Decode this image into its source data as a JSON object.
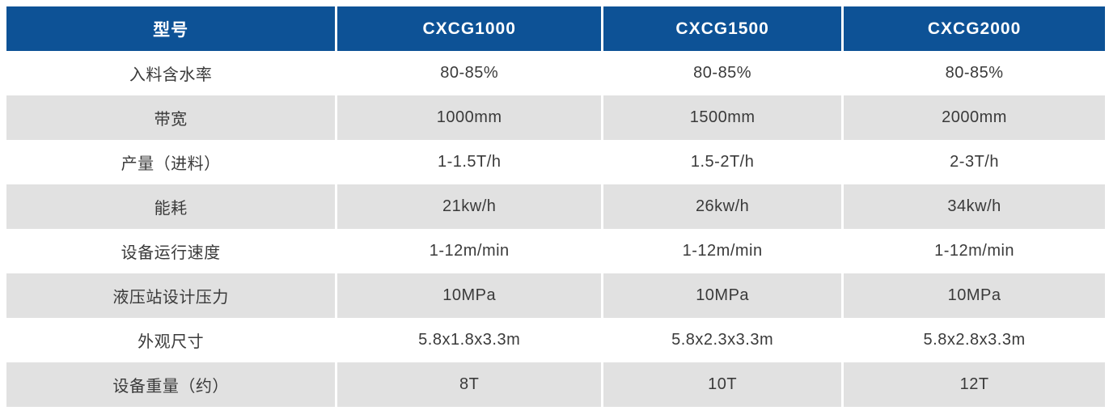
{
  "meta": {
    "description_label": "Equipment specification table",
    "accent_color": "#0d5296",
    "stripe_color": "#e1e1e1",
    "text_color": "#3a3a3a"
  },
  "table": {
    "columns": [
      "型号",
      "CXCG1000",
      "CXCG1500",
      "CXCG2000"
    ],
    "rows": [
      {
        "label": "入料含水率",
        "values": [
          "80-85%",
          "80-85%",
          "80-85%"
        ]
      },
      {
        "label": "带宽",
        "values": [
          "1000mm",
          "1500mm",
          "2000mm"
        ]
      },
      {
        "label": "产量（进料）",
        "values": [
          "1-1.5T/h",
          "1.5-2T/h",
          "2-3T/h"
        ]
      },
      {
        "label": "能耗",
        "values": [
          "21kw/h",
          "26kw/h",
          "34kw/h"
        ]
      },
      {
        "label": "设备运行速度",
        "values": [
          "1-12m/min",
          "1-12m/min",
          "1-12m/min"
        ]
      },
      {
        "label": "液压站设计压力",
        "values": [
          "10MPa",
          "10MPa",
          "10MPa"
        ]
      },
      {
        "label": "外观尺寸",
        "values": [
          "5.8x1.8x3.3m",
          "5.8x2.3x3.3m",
          "5.8x2.8x3.3m"
        ]
      },
      {
        "label": "设备重量（约）",
        "values": [
          "8T",
          "10T",
          "12T"
        ]
      }
    ]
  }
}
